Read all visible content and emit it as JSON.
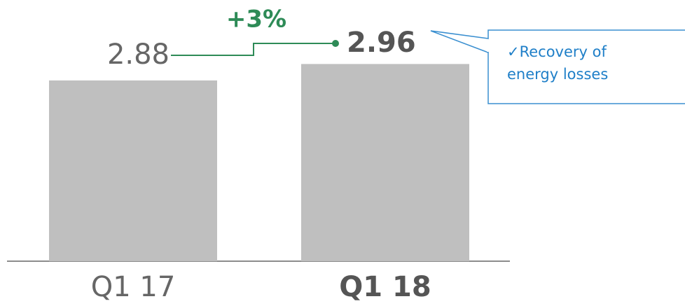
{
  "chart_data": {
    "type": "bar",
    "categories": [
      "Q1 17",
      "Q1 18"
    ],
    "values": [
      2.88,
      2.96
    ],
    "color": "#bfbfbf",
    "ylim": [
      2.0,
      3.2
    ],
    "change_label": "+3%",
    "change_color": "#2e8b57",
    "note": "✓Recovery of energy losses",
    "note_color": "#1f7fc8"
  }
}
